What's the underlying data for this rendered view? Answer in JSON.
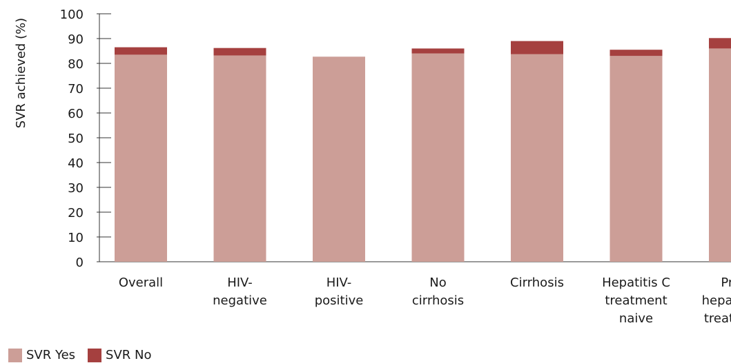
{
  "chart_data": {
    "type": "bar",
    "stacked": true,
    "categories": [
      [
        "Overall"
      ],
      [
        "HIV-",
        "negative"
      ],
      [
        "HIV-",
        "positive"
      ],
      [
        "No",
        "cirrhosis"
      ],
      [
        "Cirrhosis"
      ],
      [
        "Hepatitis C",
        "treatment",
        "naive"
      ],
      [
        "Prior",
        "hepatitis C",
        "treatment"
      ]
    ],
    "series": [
      {
        "name": "SVR Yes",
        "color": "#cc9e97",
        "values": [
          83.5,
          83.2,
          82.7,
          84.0,
          83.7,
          83.0,
          86.0
        ]
      },
      {
        "name": "SVR No",
        "color": "#a5403f",
        "values": [
          3.0,
          3.0,
          0,
          2.0,
          5.3,
          2.5,
          4.2
        ]
      }
    ],
    "ylabel": "SVR achieved (%)",
    "ylim": [
      0,
      100
    ],
    "yticks": [
      0,
      10,
      20,
      30,
      40,
      50,
      60,
      70,
      80,
      90,
      100
    ],
    "grid": false,
    "legend_position": "bottom-left"
  }
}
